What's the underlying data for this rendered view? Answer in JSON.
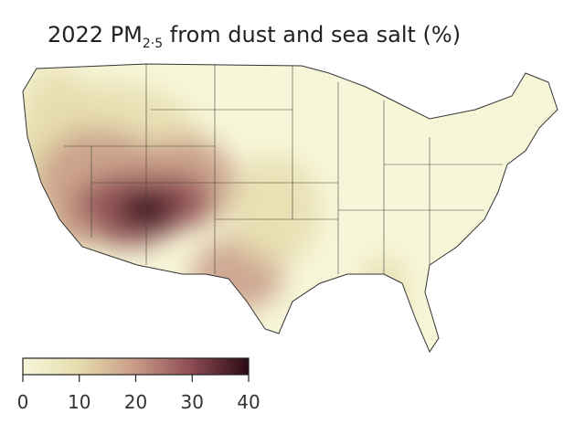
{
  "title": {
    "prefix": "2022 PM",
    "subscript": "2·5",
    "suffix": " from dust and sea salt (%)"
  },
  "colorbar": {
    "range": [
      0,
      40
    ],
    "ticks": [
      0,
      10,
      20,
      30,
      40
    ],
    "colors": [
      "#f7f6d8",
      "#e6dcae",
      "#c89a86",
      "#8c4a52",
      "#2a0a14"
    ]
  }
}
